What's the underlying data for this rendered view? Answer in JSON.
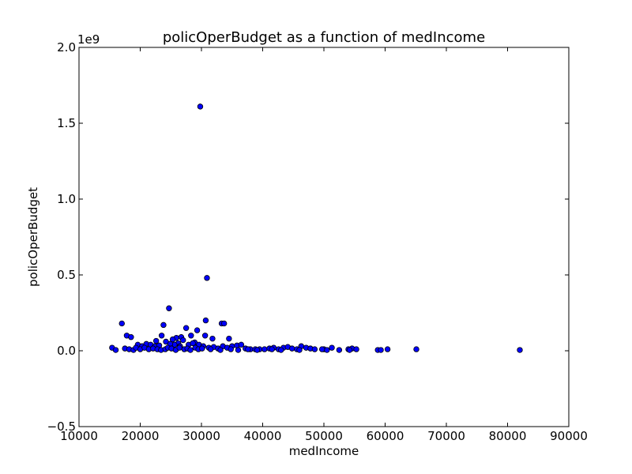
{
  "chart_data": {
    "type": "scatter",
    "title": "policOperBudget as a function of medIncome",
    "xlabel": "medIncome",
    "ylabel": "policOperBudget",
    "y_offset_label": "1e9",
    "xlim": [
      10000,
      90000
    ],
    "ylim": [
      -0.5,
      2.0
    ],
    "x_ticks": [
      10000,
      20000,
      30000,
      40000,
      50000,
      60000,
      70000,
      80000,
      90000
    ],
    "x_tick_labels": [
      "10000",
      "20000",
      "30000",
      "40000",
      "50000",
      "60000",
      "70000",
      "80000",
      "90000"
    ],
    "y_ticks": [
      -0.5,
      0.0,
      0.5,
      1.0,
      1.5,
      2.0
    ],
    "y_tick_labels": [
      "−0.5",
      "0.0",
      "0.5",
      "1.0",
      "1.5",
      "2.0"
    ],
    "grid": false,
    "marker_color": "#0000ff",
    "series": [
      {
        "x": [
          29800,
          30900,
          24700,
          30700,
          17000,
          33300,
          33700,
          23800,
          27500,
          29300,
          30600,
          34500,
          31800,
          23500,
          28300,
          26700,
          17800,
          18500,
          22600,
          25900,
          25300,
          24200,
          27000,
          28900,
          26200,
          19600,
          20300,
          21000,
          21700,
          22400,
          23100,
          25600,
          24900,
          26500,
          27900,
          28600,
          29600,
          30300,
          31200,
          32000,
          32700,
          33500,
          34200,
          35000,
          35800,
          36500,
          37200,
          38000,
          38800,
          39500,
          40300,
          41100,
          41800,
          42600,
          43400,
          44100,
          44800,
          45600,
          46300,
          47100,
          47800,
          48500,
          50000,
          50500,
          51300,
          52500,
          54000,
          54600,
          55300,
          58800,
          59300,
          60400,
          65100,
          82000,
          15400,
          16000,
          17500,
          18200,
          18900,
          19300,
          20000,
          20700,
          21400,
          22100,
          22800,
          23400,
          24100,
          24500,
          25100,
          25800,
          26400,
          27200,
          27700,
          28200,
          29000,
          29500,
          30100,
          31500,
          33100,
          34800,
          36000,
          37600,
          39100,
          41500,
          43000,
          46000,
          49700,
          54200
        ],
        "y": [
          1.61,
          0.48,
          0.28,
          0.2,
          0.18,
          0.18,
          0.18,
          0.17,
          0.15,
          0.135,
          0.1,
          0.08,
          0.08,
          0.1,
          0.1,
          0.09,
          0.1,
          0.09,
          0.065,
          0.085,
          0.075,
          0.06,
          0.07,
          0.055,
          0.05,
          0.04,
          0.03,
          0.045,
          0.04,
          0.03,
          0.035,
          0.04,
          0.045,
          0.03,
          0.04,
          0.05,
          0.04,
          0.03,
          0.02,
          0.025,
          0.015,
          0.03,
          0.02,
          0.03,
          0.035,
          0.04,
          0.015,
          0.01,
          0.01,
          0.01,
          0.01,
          0.015,
          0.02,
          0.01,
          0.02,
          0.025,
          0.015,
          0.01,
          0.03,
          0.02,
          0.015,
          0.01,
          0.01,
          0.005,
          0.02,
          0.005,
          0.01,
          0.015,
          0.01,
          0.005,
          0.005,
          0.01,
          0.01,
          0.005,
          0.02,
          0.005,
          0.015,
          0.01,
          0.005,
          0.02,
          0.01,
          0.02,
          0.01,
          0.015,
          0.01,
          0.005,
          0.01,
          0.02,
          0.015,
          0.005,
          0.02,
          0.01,
          0.015,
          0.005,
          0.02,
          0.01,
          0.015,
          0.01,
          0.005,
          0.01,
          0.005,
          0.01,
          0.005,
          0.01,
          0.005,
          0.005,
          0.01,
          0.005
        ]
      }
    ]
  }
}
